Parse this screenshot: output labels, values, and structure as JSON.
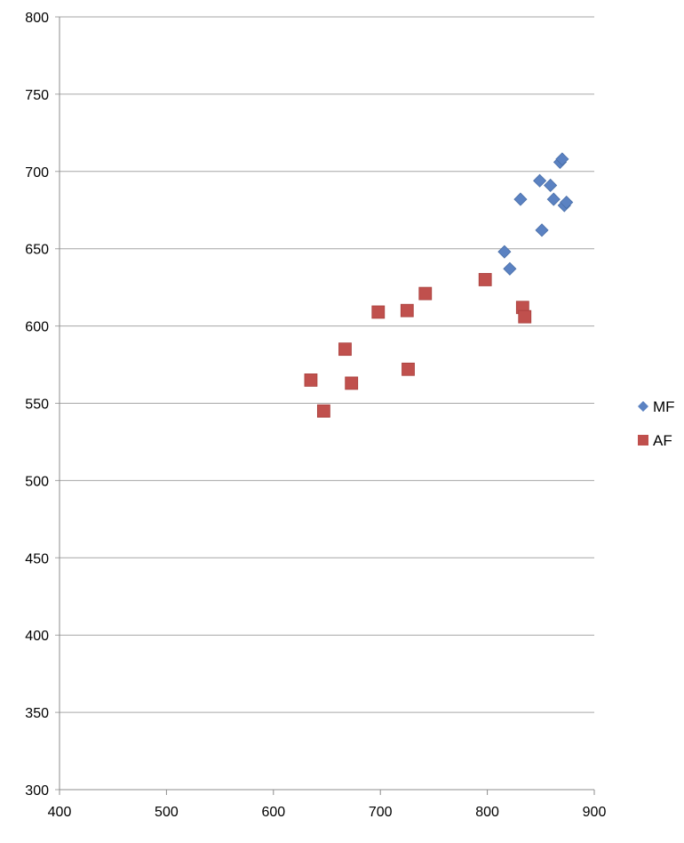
{
  "chart_data": {
    "type": "scatter",
    "title": "",
    "xlabel": "",
    "ylabel": "",
    "xlim": [
      400,
      900
    ],
    "ylim": [
      300,
      800
    ],
    "x_ticks": [
      400,
      500,
      600,
      700,
      800,
      900
    ],
    "y_ticks": [
      300,
      350,
      400,
      450,
      500,
      550,
      600,
      650,
      700,
      750,
      800
    ],
    "grid": "horizontal",
    "legend_position": "right",
    "series": [
      {
        "name": "MF",
        "marker": "diamond",
        "color": "#5B82C2",
        "points": [
          [
            816,
            648
          ],
          [
            821,
            637
          ],
          [
            831,
            682
          ],
          [
            849,
            694
          ],
          [
            851,
            662
          ],
          [
            859,
            691
          ],
          [
            862,
            682
          ],
          [
            868,
            706
          ],
          [
            870,
            708
          ],
          [
            872,
            678
          ],
          [
            874,
            680
          ]
        ]
      },
      {
        "name": "AF",
        "marker": "square",
        "color": "#C0504D",
        "points": [
          [
            635,
            565
          ],
          [
            647,
            545
          ],
          [
            667,
            585
          ],
          [
            673,
            563
          ],
          [
            698,
            609
          ],
          [
            725,
            610
          ],
          [
            726,
            572
          ],
          [
            742,
            621
          ],
          [
            798,
            630
          ],
          [
            833,
            612
          ],
          [
            835,
            606
          ]
        ]
      }
    ]
  }
}
